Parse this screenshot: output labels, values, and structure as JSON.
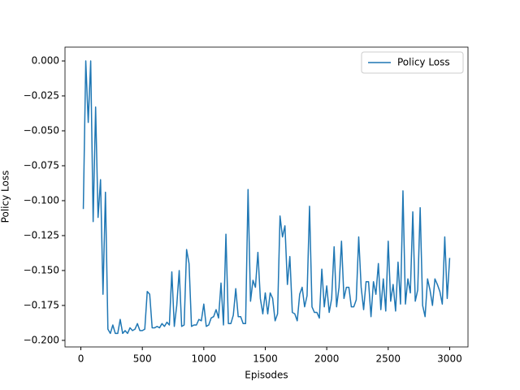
{
  "chart_data": {
    "type": "line",
    "xlabel": "Episodes",
    "ylabel": "Policy Loss",
    "x": [
      20,
      40,
      60,
      80,
      100,
      120,
      140,
      160,
      180,
      200,
      220,
      240,
      260,
      280,
      300,
      320,
      340,
      360,
      380,
      400,
      420,
      440,
      460,
      480,
      500,
      520,
      540,
      560,
      580,
      600,
      620,
      640,
      660,
      680,
      700,
      720,
      740,
      760,
      780,
      800,
      820,
      840,
      860,
      880,
      900,
      920,
      940,
      960,
      980,
      1000,
      1020,
      1040,
      1060,
      1080,
      1100,
      1120,
      1140,
      1160,
      1180,
      1200,
      1220,
      1240,
      1260,
      1280,
      1300,
      1320,
      1340,
      1360,
      1380,
      1400,
      1420,
      1440,
      1460,
      1480,
      1500,
      1520,
      1540,
      1560,
      1580,
      1600,
      1620,
      1640,
      1660,
      1680,
      1700,
      1720,
      1740,
      1760,
      1780,
      1800,
      1820,
      1840,
      1860,
      1880,
      1900,
      1920,
      1940,
      1960,
      1980,
      2000,
      2020,
      2040,
      2060,
      2080,
      2100,
      2120,
      2140,
      2160,
      2180,
      2200,
      2220,
      2240,
      2260,
      2280,
      2300,
      2320,
      2340,
      2360,
      2380,
      2400,
      2420,
      2440,
      2460,
      2480,
      2500,
      2520,
      2540,
      2560,
      2580,
      2600,
      2620,
      2640,
      2660,
      2680,
      2700,
      2720,
      2740,
      2760,
      2780,
      2800,
      2820,
      2840,
      2860,
      2880,
      2900,
      2920,
      2940,
      2960,
      2980,
      3000
    ],
    "series": [
      {
        "name": "Policy Loss",
        "color": "#1f77b4",
        "values": [
          -0.106,
          0.0,
          -0.044,
          0.0,
          -0.115,
          -0.033,
          -0.112,
          -0.085,
          -0.167,
          -0.094,
          -0.192,
          -0.195,
          -0.189,
          -0.195,
          -0.195,
          -0.185,
          -0.195,
          -0.193,
          -0.195,
          -0.191,
          -0.193,
          -0.192,
          -0.188,
          -0.193,
          -0.193,
          -0.192,
          -0.165,
          -0.167,
          -0.191,
          -0.191,
          -0.19,
          -0.191,
          -0.188,
          -0.19,
          -0.187,
          -0.189,
          -0.151,
          -0.19,
          -0.175,
          -0.15,
          -0.19,
          -0.189,
          -0.135,
          -0.145,
          -0.19,
          -0.189,
          -0.189,
          -0.185,
          -0.186,
          -0.174,
          -0.19,
          -0.189,
          -0.184,
          -0.183,
          -0.178,
          -0.184,
          -0.159,
          -0.189,
          -0.124,
          -0.188,
          -0.188,
          -0.182,
          -0.163,
          -0.183,
          -0.183,
          -0.188,
          -0.188,
          -0.092,
          -0.172,
          -0.157,
          -0.162,
          -0.137,
          -0.17,
          -0.181,
          -0.166,
          -0.181,
          -0.166,
          -0.17,
          -0.186,
          -0.181,
          -0.111,
          -0.126,
          -0.118,
          -0.16,
          -0.14,
          -0.18,
          -0.181,
          -0.186,
          -0.167,
          -0.162,
          -0.176,
          -0.168,
          -0.104,
          -0.176,
          -0.18,
          -0.18,
          -0.184,
          -0.149,
          -0.176,
          -0.161,
          -0.18,
          -0.17,
          -0.133,
          -0.176,
          -0.162,
          -0.129,
          -0.17,
          -0.162,
          -0.162,
          -0.176,
          -0.176,
          -0.171,
          -0.126,
          -0.162,
          -0.178,
          -0.158,
          -0.158,
          -0.183,
          -0.158,
          -0.167,
          -0.145,
          -0.178,
          -0.156,
          -0.179,
          -0.129,
          -0.172,
          -0.16,
          -0.179,
          -0.144,
          -0.174,
          -0.093,
          -0.174,
          -0.156,
          -0.166,
          -0.108,
          -0.172,
          -0.164,
          -0.105,
          -0.175,
          -0.183,
          -0.156,
          -0.164,
          -0.175,
          -0.156,
          -0.16,
          -0.165,
          -0.174,
          -0.126,
          -0.17,
          -0.141
        ]
      }
    ],
    "xlim": [
      -129,
      3149
    ],
    "ylim": [
      -0.2047,
      0.0099
    ],
    "xticks": [
      0,
      500,
      1000,
      1500,
      2000,
      2500,
      3000
    ],
    "yticks": [
      {
        "value": 0,
        "label": "0.000"
      },
      {
        "value": -0.025,
        "label": "−0.025"
      },
      {
        "value": -0.05,
        "label": "−0.050"
      },
      {
        "value": -0.075,
        "label": "−0.075"
      },
      {
        "value": -0.1,
        "label": "−0.100"
      },
      {
        "value": -0.125,
        "label": "−0.125"
      },
      {
        "value": -0.15,
        "label": "−0.150"
      },
      {
        "value": -0.175,
        "label": "−0.175"
      },
      {
        "value": -0.2,
        "label": "−0.200"
      }
    ],
    "grid": false,
    "legend": "upper right"
  }
}
